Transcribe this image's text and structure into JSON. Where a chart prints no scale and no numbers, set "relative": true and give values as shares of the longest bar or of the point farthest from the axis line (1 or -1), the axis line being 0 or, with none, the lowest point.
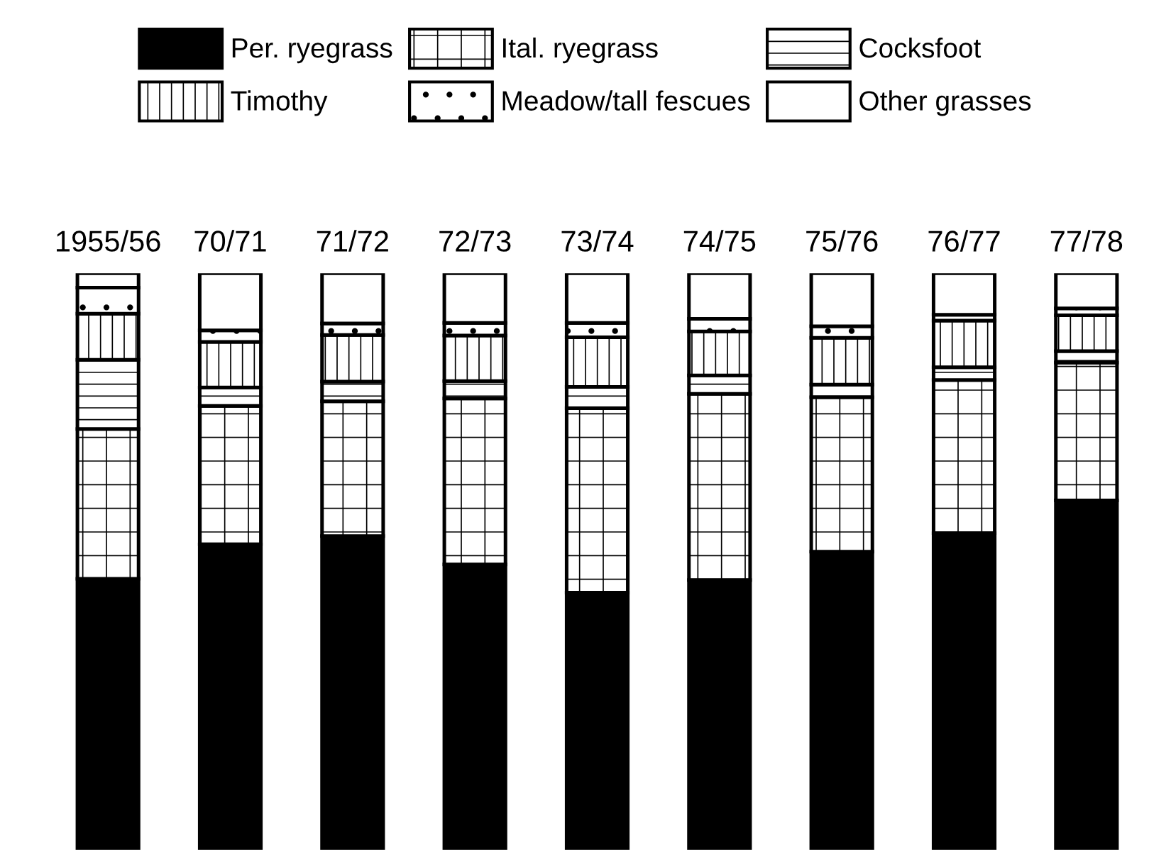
{
  "chart_data": {
    "type": "bar",
    "stacked": true,
    "relative": true,
    "legend": "top",
    "grid": false,
    "categories": [
      "1955/56",
      "70/71",
      "71/72",
      "72/73",
      "73/74",
      "74/75",
      "75/76",
      "76/77",
      "77/78"
    ],
    "series": [
      {
        "name": "Per. ryegrass",
        "color": "#000000",
        "values": [
          0.47,
          0.53,
          0.544,
          0.495,
          0.446,
          0.468,
          0.517,
          0.549,
          0.606
        ]
      },
      {
        "name": "Ital. ryegrass",
        "color": "#ffffff",
        "values": [
          0.26,
          0.24,
          0.234,
          0.288,
          0.32,
          0.323,
          0.268,
          0.266,
          0.239
        ]
      },
      {
        "name": "Cocksfoot",
        "color": "#ffffff",
        "values": [
          0.12,
          0.032,
          0.034,
          0.03,
          0.037,
          0.032,
          0.022,
          0.022,
          0.02
        ]
      },
      {
        "name": "Timothy",
        "color": "#ffffff",
        "values": [
          0.08,
          0.079,
          0.081,
          0.079,
          0.086,
          0.076,
          0.081,
          0.081,
          0.062
        ]
      },
      {
        "name": "Meadow/tall fescues",
        "color": "#ffffff",
        "values": [
          0.045,
          0.02,
          0.02,
          0.022,
          0.025,
          0.022,
          0.02,
          0.01,
          0.012
        ]
      },
      {
        "name": "Other grasses",
        "color": "#ffffff",
        "values": [
          0.025,
          0.099,
          0.087,
          0.086,
          0.086,
          0.079,
          0.092,
          0.072,
          0.061
        ]
      }
    ]
  }
}
